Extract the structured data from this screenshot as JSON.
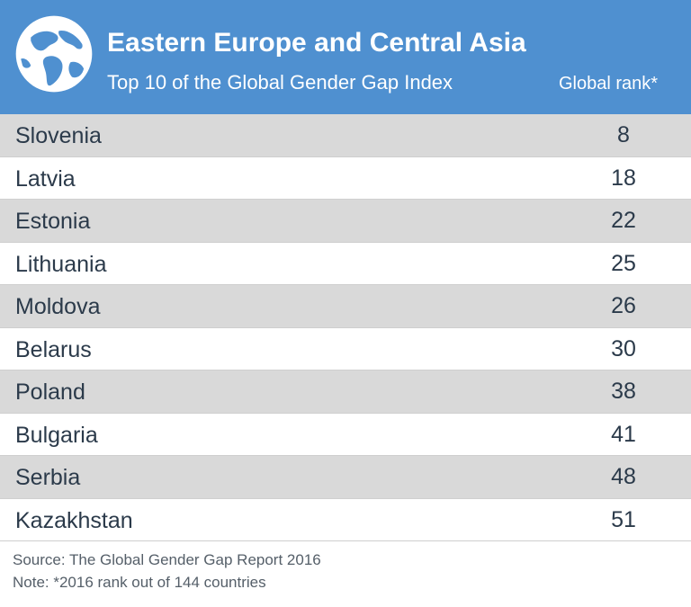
{
  "header": {
    "title": "Eastern Europe and Central Asia",
    "subtitle": "Top 10 of the Global Gender Gap Index",
    "rank_column": "Global rank*",
    "globe_icon": "globe-icon",
    "background_color": "#4f90d0"
  },
  "chart_data": {
    "type": "table",
    "title": "Eastern Europe and Central Asia",
    "subtitle": "Top 10 of the Global Gender Gap Index",
    "columns": [
      "",
      "Global rank*"
    ],
    "rows": [
      {
        "country": "Slovenia",
        "rank": "8"
      },
      {
        "country": "Latvia",
        "rank": "18"
      },
      {
        "country": "Estonia",
        "rank": "22"
      },
      {
        "country": "Lithuania",
        "rank": "25"
      },
      {
        "country": "Moldova",
        "rank": "26"
      },
      {
        "country": "Belarus",
        "rank": "30"
      },
      {
        "country": "Poland",
        "rank": "38"
      },
      {
        "country": "Bulgaria",
        "rank": "41"
      },
      {
        "country": "Serbia",
        "rank": "48"
      },
      {
        "country": "Kazakhstan",
        "rank": "51"
      }
    ],
    "row_shade_color": "#d9d9d9"
  },
  "footer": {
    "source": "Source: The Global Gender Gap Report 2016",
    "note": "Note: *2016 rank out of 144 countries"
  }
}
